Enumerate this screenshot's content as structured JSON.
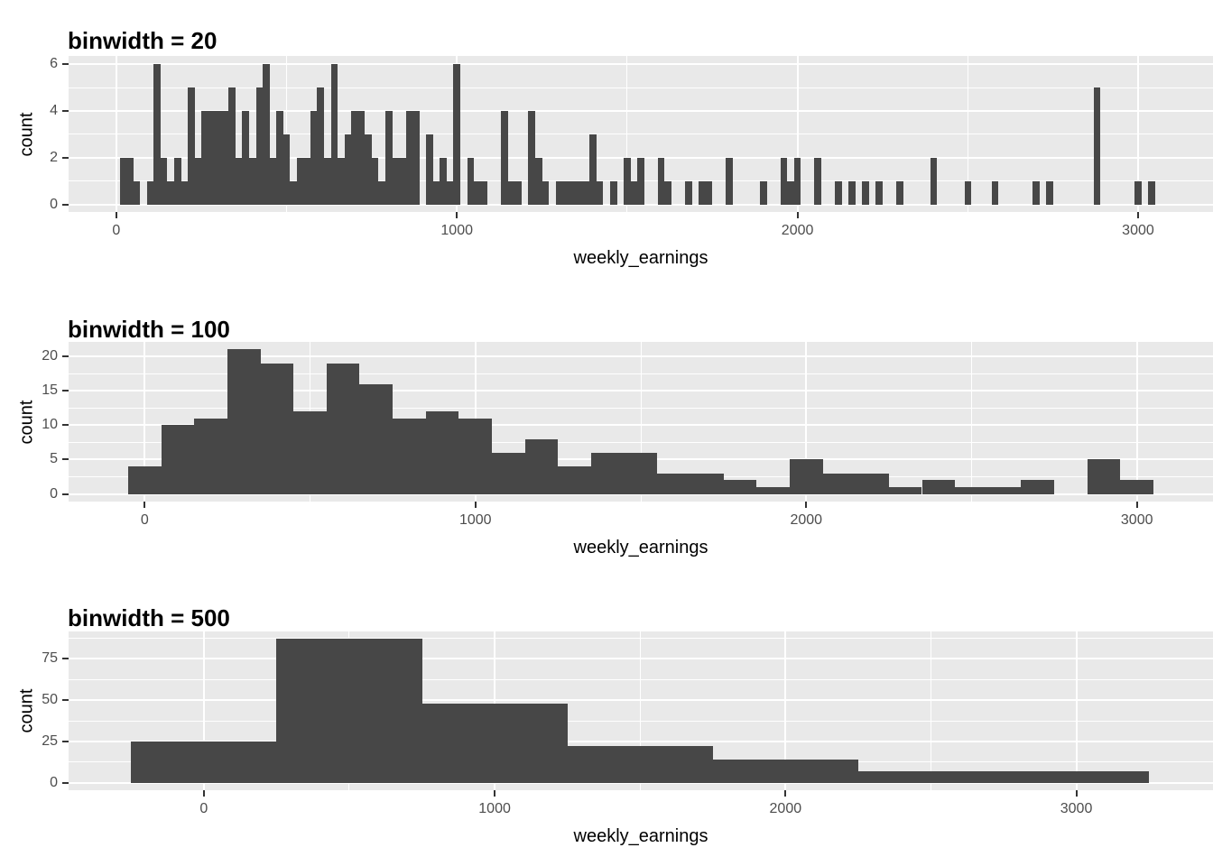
{
  "page": {
    "background": "#FFFFFF",
    "description": "Three stacked ggplot-style histograms of weekly_earnings with different binwidths"
  },
  "colors": {
    "bar_fill": "#474747",
    "panel_background": "#E9E9E9",
    "grid_line": "#FFFFFF",
    "tick_mark": "#333333",
    "tick_label": "#4D4D4D",
    "text": "#000000"
  },
  "chart_data": [
    {
      "type": "bar",
      "subtype": "histogram",
      "title": "binwidth = 20",
      "xlabel": "weekly_earnings",
      "ylabel": "count",
      "binwidth": 20,
      "legend": "none",
      "grid": true,
      "x_ticks": [
        0,
        1000,
        2000,
        3000
      ],
      "x_minor_ticks": [
        500,
        1500,
        2500
      ],
      "y_ticks": [
        0,
        2,
        4,
        6
      ],
      "y_minor_ticks": [
        1,
        3,
        5
      ],
      "xlim": [
        -140,
        3220
      ],
      "ylim": [
        -0.32,
        6.35
      ],
      "bins": {
        "centers": [
          20,
          40,
          60,
          100,
          120,
          140,
          160,
          180,
          200,
          220,
          240,
          260,
          280,
          300,
          320,
          340,
          360,
          380,
          400,
          420,
          440,
          460,
          480,
          500,
          520,
          540,
          560,
          580,
          600,
          620,
          640,
          660,
          680,
          700,
          720,
          740,
          760,
          780,
          800,
          820,
          840,
          860,
          880,
          920,
          940,
          960,
          980,
          1000,
          1040,
          1060,
          1080,
          1140,
          1160,
          1180,
          1220,
          1240,
          1260,
          1300,
          1320,
          1340,
          1360,
          1380,
          1400,
          1420,
          1460,
          1500,
          1520,
          1540,
          1600,
          1620,
          1680,
          1720,
          1740,
          1800,
          1900,
          1960,
          1980,
          2000,
          2060,
          2120,
          2160,
          2200,
          2240,
          2300,
          2400,
          2500,
          2580,
          2700,
          2740,
          2880,
          3000,
          3040
        ],
        "counts": [
          2,
          2,
          1,
          1,
          6,
          2,
          1,
          2,
          1,
          5,
          2,
          4,
          4,
          4,
          4,
          5,
          2,
          4,
          2,
          5,
          6,
          2,
          4,
          3,
          1,
          2,
          2,
          4,
          5,
          2,
          6,
          2,
          3,
          4,
          4,
          3,
          2,
          1,
          4,
          2,
          2,
          4,
          4,
          3,
          1,
          2,
          1,
          6,
          2,
          1,
          1,
          4,
          1,
          1,
          4,
          2,
          1,
          1,
          1,
          1,
          1,
          1,
          3,
          1,
          1,
          2,
          1,
          2,
          2,
          1,
          1,
          1,
          1,
          2,
          1,
          2,
          1,
          2,
          2,
          1,
          1,
          1,
          1,
          1,
          2,
          1,
          1,
          1,
          1,
          5,
          1,
          1
        ]
      }
    },
    {
      "type": "bar",
      "subtype": "histogram",
      "title": "binwidth = 100",
      "xlabel": "weekly_earnings",
      "ylabel": "count",
      "binwidth": 100,
      "legend": "none",
      "grid": true,
      "x_ticks": [
        0,
        1000,
        2000,
        3000
      ],
      "x_minor_ticks": [
        500,
        1500,
        2500
      ],
      "y_ticks": [
        0,
        5,
        10,
        15,
        20
      ],
      "y_minor_ticks": [
        2.5,
        7.5,
        12.5,
        17.5
      ],
      "xlim": [
        -230,
        3230
      ],
      "ylim": [
        -1.1,
        22.1
      ],
      "bins": {
        "centers": [
          0,
          100,
          200,
          300,
          400,
          500,
          600,
          700,
          800,
          900,
          1000,
          1100,
          1200,
          1300,
          1400,
          1500,
          1600,
          1700,
          1800,
          1900,
          2000,
          2100,
          2200,
          2300,
          2400,
          2500,
          2600,
          2700,
          2800,
          2900,
          3000
        ],
        "counts": [
          4,
          10,
          11,
          21,
          19,
          12,
          19,
          16,
          11,
          12,
          11,
          6,
          8,
          4,
          6,
          6,
          3,
          3,
          2,
          1,
          5,
          3,
          3,
          1,
          2,
          1,
          1,
          2,
          0,
          5,
          2
        ]
      }
    },
    {
      "type": "bar",
      "subtype": "histogram",
      "title": "binwidth = 500",
      "xlabel": "weekly_earnings",
      "ylabel": "count",
      "binwidth": 500,
      "legend": "none",
      "grid": true,
      "x_ticks": [
        0,
        1000,
        2000,
        3000
      ],
      "x_minor_ticks": [
        500,
        1500,
        2500
      ],
      "y_ticks": [
        0,
        25,
        50,
        75
      ],
      "y_minor_ticks": [
        12.5,
        37.5,
        62.5,
        87.5
      ],
      "xlim": [
        -465,
        3470
      ],
      "ylim": [
        -4.5,
        91.5
      ],
      "bins": {
        "centers": [
          0,
          500,
          1000,
          1500,
          2000,
          2500,
          3000
        ],
        "counts": [
          25,
          87,
          48,
          22,
          14,
          7,
          7
        ]
      }
    }
  ]
}
